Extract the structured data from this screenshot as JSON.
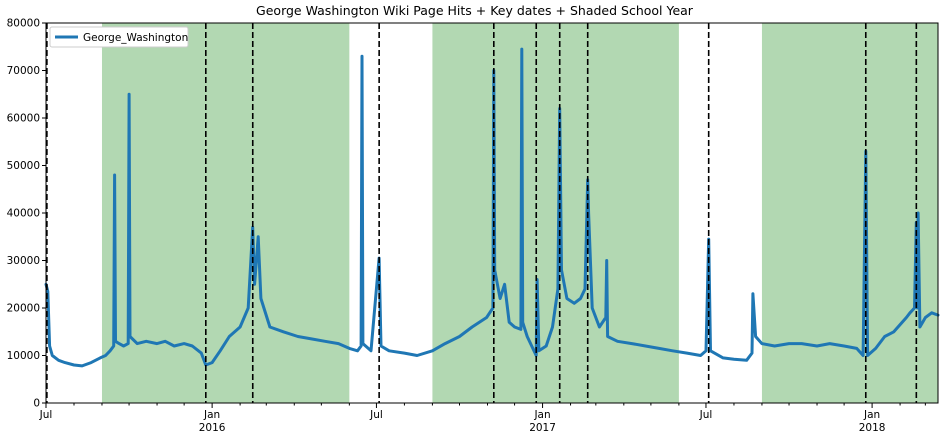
{
  "chart_data": {
    "type": "line",
    "title": "George Washington Wiki Page Hits + Key dates + Shaded School Year",
    "xlabel": "",
    "ylabel": "",
    "x_range": [
      "2015-07-01",
      "2018-03-15"
    ],
    "ylim": [
      0,
      80000
    ],
    "y_ticks": [
      0,
      10000,
      20000,
      30000,
      40000,
      50000,
      60000,
      70000,
      80000
    ],
    "x_ticks": [
      {
        "date": "2015-07-01",
        "label": "Jul",
        "sublabel": ""
      },
      {
        "date": "2016-01-01",
        "label": "Jan",
        "sublabel": "2016"
      },
      {
        "date": "2016-07-01",
        "label": "Jul",
        "sublabel": ""
      },
      {
        "date": "2017-01-01",
        "label": "Jan",
        "sublabel": "2017"
      },
      {
        "date": "2017-07-01",
        "label": "Jul",
        "sublabel": ""
      },
      {
        "date": "2018-01-01",
        "label": "Jan",
        "sublabel": "2018"
      }
    ],
    "grid": false,
    "legend_position": "top-left",
    "line_color": "#1f77b4",
    "shade_color": "#b2d8b2",
    "key_date_line_color": "#000000",
    "shaded_school_years": [
      {
        "start": "2015-09-01",
        "end": "2016-06-01"
      },
      {
        "start": "2016-09-01",
        "end": "2017-06-01"
      },
      {
        "start": "2017-09-01",
        "end": "2018-03-15"
      }
    ],
    "key_dates": [
      "2015-07-02",
      "2015-12-25",
      "2016-02-15",
      "2016-07-04",
      "2016-11-08",
      "2016-12-25",
      "2017-01-20",
      "2017-02-20",
      "2017-07-04",
      "2017-12-25",
      "2018-02-19"
    ],
    "series": [
      {
        "name": "George_Washington",
        "points": [
          [
            "2015-07-01",
            25000
          ],
          [
            "2015-07-03",
            23500
          ],
          [
            "2015-07-05",
            12000
          ],
          [
            "2015-07-08",
            10000
          ],
          [
            "2015-07-15",
            9000
          ],
          [
            "2015-07-22",
            8500
          ],
          [
            "2015-08-01",
            8000
          ],
          [
            "2015-08-10",
            7800
          ],
          [
            "2015-08-20",
            8500
          ],
          [
            "2015-08-30",
            9500
          ],
          [
            "2015-09-05",
            10000
          ],
          [
            "2015-09-10",
            11000
          ],
          [
            "2015-09-14",
            12000
          ],
          [
            "2015-09-15",
            48000
          ],
          [
            "2015-09-16",
            13000
          ],
          [
            "2015-09-20",
            12500
          ],
          [
            "2015-09-25",
            12000
          ],
          [
            "2015-09-30",
            12500
          ],
          [
            "2015-10-01",
            65000
          ],
          [
            "2015-10-02",
            14000
          ],
          [
            "2015-10-10",
            12500
          ],
          [
            "2015-10-20",
            13000
          ],
          [
            "2015-11-01",
            12500
          ],
          [
            "2015-11-10",
            13000
          ],
          [
            "2015-11-20",
            12000
          ],
          [
            "2015-12-01",
            12500
          ],
          [
            "2015-12-10",
            12000
          ],
          [
            "2015-12-20",
            10500
          ],
          [
            "2015-12-25",
            8000
          ],
          [
            "2016-01-01",
            8500
          ],
          [
            "2016-01-10",
            11000
          ],
          [
            "2016-01-20",
            14000
          ],
          [
            "2016-02-01",
            16000
          ],
          [
            "2016-02-10",
            20000
          ],
          [
            "2016-02-15",
            37000
          ],
          [
            "2016-02-17",
            25000
          ],
          [
            "2016-02-21",
            35000
          ],
          [
            "2016-02-24",
            22000
          ],
          [
            "2016-03-05",
            16000
          ],
          [
            "2016-03-20",
            15000
          ],
          [
            "2016-04-05",
            14000
          ],
          [
            "2016-04-20",
            13500
          ],
          [
            "2016-05-05",
            13000
          ],
          [
            "2016-05-20",
            12500
          ],
          [
            "2016-06-01",
            11500
          ],
          [
            "2016-06-10",
            11000
          ],
          [
            "2016-06-14",
            12000
          ],
          [
            "2016-06-15",
            73000
          ],
          [
            "2016-06-16",
            12500
          ],
          [
            "2016-06-25",
            11000
          ],
          [
            "2016-07-04",
            30500
          ],
          [
            "2016-07-06",
            12000
          ],
          [
            "2016-07-15",
            11000
          ],
          [
            "2016-08-01",
            10500
          ],
          [
            "2016-08-15",
            10000
          ],
          [
            "2016-09-01",
            11000
          ],
          [
            "2016-09-15",
            12500
          ],
          [
            "2016-10-01",
            14000
          ],
          [
            "2016-10-15",
            16000
          ],
          [
            "2016-10-31",
            18000
          ],
          [
            "2016-11-07",
            20000
          ],
          [
            "2016-11-08",
            70000
          ],
          [
            "2016-11-09",
            28000
          ],
          [
            "2016-11-15",
            22000
          ],
          [
            "2016-11-20",
            25000
          ],
          [
            "2016-11-25",
            17000
          ],
          [
            "2016-12-01",
            16000
          ],
          [
            "2016-12-08",
            15500
          ],
          [
            "2016-12-09",
            74500
          ],
          [
            "2016-12-10",
            17000
          ],
          [
            "2016-12-15",
            14000
          ],
          [
            "2016-12-25",
            10000
          ],
          [
            "2016-12-26",
            26000
          ],
          [
            "2016-12-28",
            11000
          ],
          [
            "2017-01-05",
            12000
          ],
          [
            "2017-01-12",
            16000
          ],
          [
            "2017-01-18",
            24000
          ],
          [
            "2017-01-20",
            62000
          ],
          [
            "2017-01-22",
            28000
          ],
          [
            "2017-01-28",
            22000
          ],
          [
            "2017-02-05",
            21000
          ],
          [
            "2017-02-12",
            22000
          ],
          [
            "2017-02-17",
            24000
          ],
          [
            "2017-02-20",
            47000
          ],
          [
            "2017-02-21",
            40000
          ],
          [
            "2017-02-25",
            20000
          ],
          [
            "2017-03-05",
            16000
          ],
          [
            "2017-03-12",
            18000
          ],
          [
            "2017-03-13",
            30000
          ],
          [
            "2017-03-14",
            14000
          ],
          [
            "2017-03-25",
            13000
          ],
          [
            "2017-04-10",
            12500
          ],
          [
            "2017-04-25",
            12000
          ],
          [
            "2017-05-10",
            11500
          ],
          [
            "2017-05-25",
            11000
          ],
          [
            "2017-06-10",
            10500
          ],
          [
            "2017-06-25",
            10000
          ],
          [
            "2017-07-01",
            11000
          ],
          [
            "2017-07-04",
            34500
          ],
          [
            "2017-07-06",
            11000
          ],
          [
            "2017-07-20",
            9500
          ],
          [
            "2017-08-01",
            9200
          ],
          [
            "2017-08-15",
            9000
          ],
          [
            "2017-08-21",
            10500
          ],
          [
            "2017-08-22",
            23000
          ],
          [
            "2017-08-25",
            14000
          ],
          [
            "2017-09-01",
            12500
          ],
          [
            "2017-09-15",
            12000
          ],
          [
            "2017-10-01",
            12500
          ],
          [
            "2017-10-15",
            12500
          ],
          [
            "2017-11-01",
            12000
          ],
          [
            "2017-11-15",
            12500
          ],
          [
            "2017-12-01",
            12000
          ],
          [
            "2017-12-15",
            11500
          ],
          [
            "2017-12-22",
            10000
          ],
          [
            "2017-12-25",
            53000
          ],
          [
            "2017-12-27",
            10000
          ],
          [
            "2018-01-05",
            11500
          ],
          [
            "2018-01-15",
            14000
          ],
          [
            "2018-01-25",
            15000
          ],
          [
            "2018-02-01",
            16500
          ],
          [
            "2018-02-08",
            18000
          ],
          [
            "2018-02-12",
            19000
          ],
          [
            "2018-02-17",
            20000
          ],
          [
            "2018-02-19",
            38000
          ],
          [
            "2018-02-20",
            20000
          ],
          [
            "2018-02-21",
            40000
          ],
          [
            "2018-02-23",
            16000
          ],
          [
            "2018-03-01",
            18000
          ],
          [
            "2018-03-08",
            19000
          ],
          [
            "2018-03-15",
            18500
          ]
        ]
      }
    ]
  }
}
